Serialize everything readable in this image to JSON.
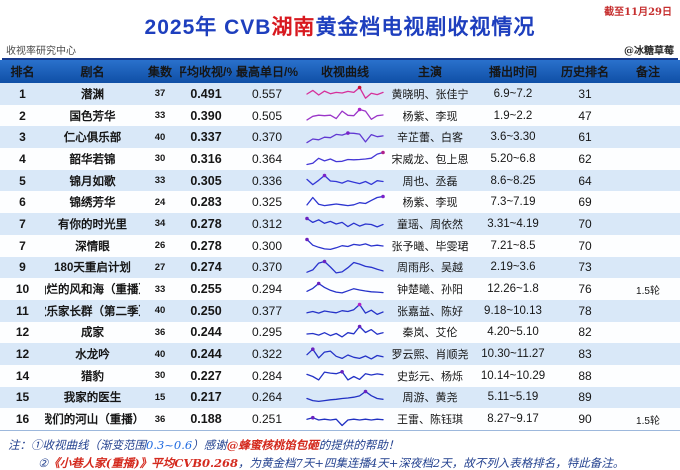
{
  "meta": {
    "date_note": "截至11月29日",
    "source_left": "收视率研究中心",
    "source_right": "@冰糖草莓"
  },
  "title": {
    "part1": "2025年 CVB",
    "highlight": "湖南",
    "part2": "黄金档电视剧收视情况"
  },
  "notes": {
    "n1_prefix": "注：①收视曲线（渐变范围",
    "n1_range": "0.3~0.6",
    "n1_mid": "）感谢",
    "n1_credit": "@蜂蜜核桃馅包砸",
    "n1_suffix": "的提供的帮助！",
    "n2_num": "②",
    "n2_red": "《小巷人家(重播)》平均CVB0.268",
    "n2_suffix": "，为黄金档7天+四集连播4天+深夜档2天，故不列入表格排名，特此备注。"
  },
  "colors": {
    "title_blue": "#1e3fbe",
    "title_red": "#d8191f",
    "header_bg_top": "#2a71cc",
    "header_bg_bottom": "#0f4fa6",
    "stripe_blue": "#d9e8f8",
    "stripe_white": "#fdfeff",
    "note_blue": "#23418f",
    "note_red": "#d42a1e"
  },
  "chart_data": {
    "type": "table",
    "title": "2025年 CVB湖南黄金档电视剧收视情况",
    "columns": [
      "排名",
      "剧名",
      "集数",
      "平均收视/%",
      "最高单日/%",
      "收视曲线",
      "主演",
      "播出时间",
      "历史排名",
      "备注"
    ],
    "rows": [
      [
        "1",
        "潜渊",
        "37",
        "0.491",
        "0.557",
        "黄晓明、张佳宁",
        "6.9~7.2",
        "31",
        ""
      ],
      [
        "2",
        "国色芳华",
        "33",
        "0.390",
        "0.505",
        "杨紫、李现",
        "1.9~2.2",
        "47",
        ""
      ],
      [
        "3",
        "仁心俱乐部",
        "40",
        "0.337",
        "0.370",
        "辛芷蕾、白客",
        "3.6~3.30",
        "61",
        ""
      ],
      [
        "4",
        "韶华若锦",
        "30",
        "0.316",
        "0.364",
        "宋威龙、包上恩",
        "5.20~6.8",
        "62",
        ""
      ],
      [
        "5",
        "锦月如歌",
        "33",
        "0.305",
        "0.336",
        "周也、丞磊",
        "8.6~8.25",
        "64",
        ""
      ],
      [
        "6",
        "锦绣芳华",
        "24",
        "0.283",
        "0.325",
        "杨紫、李现",
        "7.3~7.19",
        "69",
        ""
      ],
      [
        "7",
        "有你的时光里",
        "34",
        "0.278",
        "0.312",
        "童瑶、周依然",
        "3.31~4.19",
        "70",
        ""
      ],
      [
        "7",
        "深情眼",
        "26",
        "0.278",
        "0.300",
        "张予曦、毕雯珺",
        "7.21~8.5",
        "70",
        ""
      ],
      [
        "9",
        "180天重启计划",
        "27",
        "0.274",
        "0.370",
        "周雨彤、吴越",
        "2.19~3.6",
        "73",
        ""
      ],
      [
        "10",
        "灿烂的风和海（重播）",
        "33",
        "0.255",
        "0.294",
        "钟楚曦、孙阳",
        "12.26~1.8",
        "76",
        "1.5轮"
      ],
      [
        "11",
        "欢乐家长群（第二季）",
        "40",
        "0.250",
        "0.377",
        "张嘉益、陈好",
        "9.18~10.13",
        "78",
        ""
      ],
      [
        "12",
        "成家",
        "36",
        "0.244",
        "0.295",
        "秦岚、艾伦",
        "4.20~5.10",
        "82",
        ""
      ],
      [
        "12",
        "水龙吟",
        "40",
        "0.244",
        "0.322",
        "罗云熙、肖顺尧",
        "10.30~11.27",
        "83",
        ""
      ],
      [
        "14",
        "猎豹",
        "30",
        "0.227",
        "0.284",
        "史彭元、杨烁",
        "10.14~10.29",
        "88",
        ""
      ],
      [
        "15",
        "我家的医生",
        "15",
        "0.217",
        "0.264",
        "周游、黄尧",
        "5.11~5.19",
        "89",
        ""
      ],
      [
        "16",
        "我们的河山（重播）",
        "36",
        "0.188",
        "0.251",
        "王雷、陈钰琪",
        "8.27~9.17",
        "90",
        "1.5轮"
      ]
    ],
    "sparkline_note": "curve color gradient maps avg rating 0.3(blue)~0.6(pink); dot marks peak day",
    "sparklines": [
      {
        "color": "#d6309b",
        "dot": "#cc1133",
        "peak": 9,
        "values": [
          0.5,
          0.78,
          0.42,
          0.72,
          0.52,
          0.62,
          0.58,
          0.7,
          0.62,
          1.0,
          0.18,
          0.55,
          0.45,
          0.62
        ]
      },
      {
        "color": "#9a35c8",
        "dot": "#aa22cc",
        "peak": 9,
        "values": [
          0.2,
          0.48,
          0.56,
          0.52,
          0.56,
          0.3,
          0.88,
          0.55,
          0.52,
          1.0,
          0.88,
          0.25,
          0.52,
          0.58
        ]
      },
      {
        "color": "#6038d2",
        "dot": "#7a22c8",
        "peak": 7,
        "values": [
          0.15,
          0.42,
          0.36,
          0.56,
          0.52,
          0.78,
          0.72,
          0.88,
          0.86,
          0.8,
          0.2,
          0.76,
          0.6,
          0.66
        ]
      },
      {
        "color": "#4437d6",
        "dot": "#b0208a",
        "peak": 13,
        "values": [
          0.08,
          0.18,
          0.55,
          0.35,
          0.5,
          0.3,
          0.32,
          0.46,
          0.44,
          0.46,
          0.5,
          0.56,
          0.88,
          1.0
        ]
      },
      {
        "color": "#3336d6",
        "dot": "#7a22c8",
        "peak": 3,
        "values": [
          0.62,
          0.22,
          0.55,
          0.92,
          0.5,
          0.46,
          0.34,
          0.52,
          0.4,
          0.3,
          0.46,
          0.24,
          0.52,
          0.46
        ]
      },
      {
        "color": "#2c34d0",
        "dot": "#7a22c8",
        "peak": 13,
        "values": [
          0.35,
          0.92,
          0.4,
          0.3,
          0.36,
          0.42,
          0.36,
          0.3,
          0.36,
          0.52,
          0.46,
          0.7,
          0.92,
          1.0
        ]
      },
      {
        "color": "#2a33ce",
        "dot": "#6a22c0",
        "peak": 0,
        "values": [
          0.92,
          0.62,
          0.82,
          0.55,
          0.7,
          0.5,
          0.62,
          0.3,
          0.56,
          0.34,
          0.5,
          0.46,
          0.28,
          0.46
        ]
      },
      {
        "color": "#2a33ce",
        "dot": "#6a22c0",
        "peak": 0,
        "values": [
          1.0,
          0.56,
          0.4,
          0.28,
          0.24,
          0.36,
          0.52,
          0.46,
          0.62,
          0.56,
          0.66,
          0.5,
          0.56,
          0.5
        ]
      },
      {
        "color": "#2933cd",
        "dot": "#6a22c0",
        "peak": 3,
        "values": [
          0.18,
          0.35,
          0.88,
          1.0,
          0.58,
          0.12,
          0.2,
          0.52,
          0.92,
          0.8,
          0.62,
          0.55,
          0.4,
          0.28
        ]
      },
      {
        "color": "#2632c9",
        "dot": "#6a22c0",
        "peak": 2,
        "values": [
          0.4,
          0.62,
          1.0,
          0.7,
          0.48,
          0.34,
          0.28,
          0.44,
          0.6,
          0.5,
          0.42,
          0.36,
          0.34,
          0.3
        ]
      },
      {
        "color": "#2532c8",
        "dot": "#b322c8",
        "peak": 9,
        "values": [
          0.36,
          0.46,
          0.34,
          0.5,
          0.42,
          0.36,
          0.52,
          0.46,
          0.6,
          1.0,
          0.34,
          0.56,
          0.24,
          0.42
        ]
      },
      {
        "color": "#2432c7",
        "dot": "#6a22c0",
        "peak": 9,
        "values": [
          0.42,
          0.46,
          0.34,
          0.52,
          0.3,
          0.46,
          0.2,
          0.52,
          0.44,
          1.0,
          0.54,
          0.76,
          0.4,
          0.52
        ]
      },
      {
        "color": "#2432c7",
        "dot": "#6a22c0",
        "peak": 1,
        "values": [
          0.52,
          0.95,
          0.28,
          0.72,
          0.8,
          0.4,
          0.24,
          0.5,
          0.32,
          0.24,
          0.42,
          0.2,
          0.46,
          0.36
        ]
      },
      {
        "color": "#2332c6",
        "dot": "#6a22c0",
        "peak": 6,
        "values": [
          0.62,
          0.46,
          0.2,
          0.8,
          0.72,
          0.68,
          0.82,
          0.2,
          0.46,
          0.24,
          0.68,
          0.58,
          0.66,
          0.6
        ]
      },
      {
        "color": "#2231c4",
        "dot": "#6a22c0",
        "peak": 10,
        "values": [
          0.46,
          0.3,
          0.24,
          0.3,
          0.36,
          0.4,
          0.46,
          0.5,
          0.56,
          0.66,
          1.0,
          0.68,
          0.46,
          0.4
        ]
      },
      {
        "color": "#2030c2",
        "dot": "#6a22c0",
        "peak": 1,
        "values": [
          0.55,
          0.68,
          0.5,
          0.56,
          0.5,
          0.56,
          0.08,
          0.5,
          0.56,
          0.5,
          0.56,
          0.5,
          0.56,
          0.52
        ]
      }
    ]
  }
}
